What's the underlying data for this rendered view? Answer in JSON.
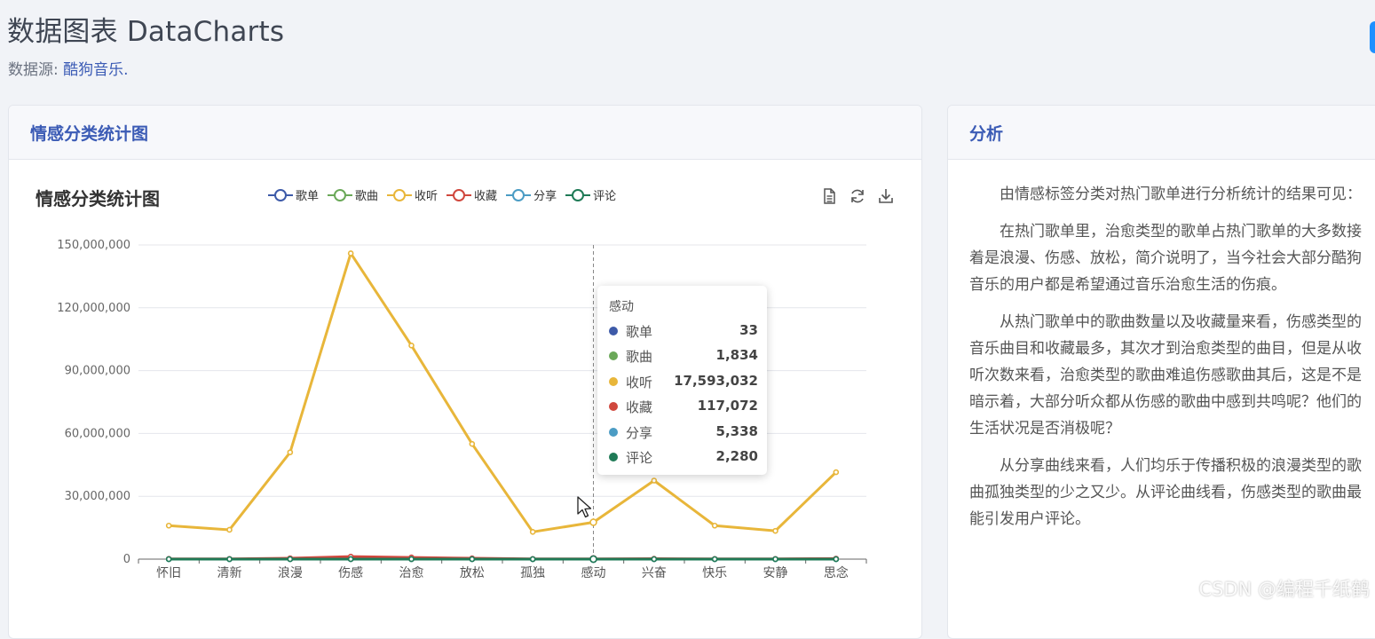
{
  "header": {
    "title": "数据图表 DataCharts",
    "source_label": "数据源: ",
    "source_link": "酷狗音乐.",
    "accent": "#3b5bb5"
  },
  "chart_card": {
    "header_title": "情感分类统计图"
  },
  "analysis_card": {
    "header_title": "分析",
    "paragraphs": [
      "由情感标签分类对热门歌单进行分析统计的结果可见：",
      "在热门歌单里，治愈类型的歌单占热门歌单的大多数接着是浪漫、伤感、放松，简介说明了，当今社会大部分酷狗音乐的用户都是希望通过音乐治愈生活的伤痕。",
      "从热门歌单中的歌曲数量以及收藏量来看，伤感类型的音乐曲目和收藏最多，其次才到治愈类型的曲目，但是从收听次数来看，治愈类型的歌曲难追伤感歌曲其后，这是不是暗示着，大部分听众都从伤感的歌曲中感到共鸣呢？他们的生活状况是否消极呢？",
      "从分享曲线来看，人们均乐于传播积极的浪漫类型的歌曲孤独类型的少之又少。从评论曲线看，伤感类型的歌曲最能引发用户评论。"
    ]
  },
  "toolbox": {
    "icons": [
      "data-view-icon",
      "restore-icon",
      "save-image-icon"
    ]
  },
  "tooltip": {
    "title": "感动",
    "rows": [
      {
        "name": "歌单",
        "value": "33",
        "color": "#3d5aa8"
      },
      {
        "name": "歌曲",
        "value": "1,834",
        "color": "#6aa858"
      },
      {
        "name": "收听",
        "value": "17,593,032",
        "color": "#e8b63a"
      },
      {
        "name": "收藏",
        "value": "117,072",
        "color": "#d0473d"
      },
      {
        "name": "分享",
        "value": "5,338",
        "color": "#4b9cc4"
      },
      {
        "name": "评论",
        "value": "2,280",
        "color": "#1f7a56"
      }
    ]
  },
  "chart_data": {
    "type": "line",
    "title": "情感分类统计图",
    "categories": [
      "怀旧",
      "清新",
      "浪漫",
      "伤感",
      "治愈",
      "放松",
      "孤独",
      "感动",
      "兴奋",
      "快乐",
      "安静",
      "思念"
    ],
    "ylim": [
      0,
      150000000
    ],
    "yticks": [
      "0",
      "30,000,000",
      "60,000,000",
      "90,000,000",
      "120,000,000",
      "150,000,000"
    ],
    "grid": true,
    "legend_position": "top",
    "highlighted_category": "感动",
    "series": [
      {
        "name": "歌单",
        "color": "#3d5aa8",
        "values": [
          30,
          25,
          60,
          80,
          120,
          70,
          20,
          33,
          40,
          35,
          30,
          45
        ]
      },
      {
        "name": "歌曲",
        "color": "#6aa858",
        "values": [
          1500,
          1200,
          4000,
          6500,
          5500,
          3500,
          900,
          1834,
          2200,
          1800,
          1600,
          2600
        ]
      },
      {
        "name": "收听",
        "color": "#e8b63a",
        "values": [
          16000000,
          14000000,
          51000000,
          146000000,
          102000000,
          55000000,
          13000000,
          17593032,
          37500000,
          16000000,
          13500000,
          41500000
        ]
      },
      {
        "name": "收藏",
        "color": "#d0473d",
        "values": [
          120000,
          100000,
          420000,
          1200000,
          800000,
          400000,
          90000,
          117072,
          200000,
          110000,
          100000,
          260000
        ]
      },
      {
        "name": "分享",
        "color": "#4b9cc4",
        "values": [
          4000,
          3500,
          12000,
          11000,
          10000,
          7000,
          1500,
          5338,
          4500,
          3800,
          3200,
          6000
        ]
      },
      {
        "name": "评论",
        "color": "#1f7a56",
        "values": [
          1800,
          1400,
          5000,
          9000,
          6500,
          3500,
          900,
          2280,
          2600,
          2000,
          1800,
          3200
        ]
      }
    ]
  },
  "watermark": "CSDN @编程千纸鹤"
}
